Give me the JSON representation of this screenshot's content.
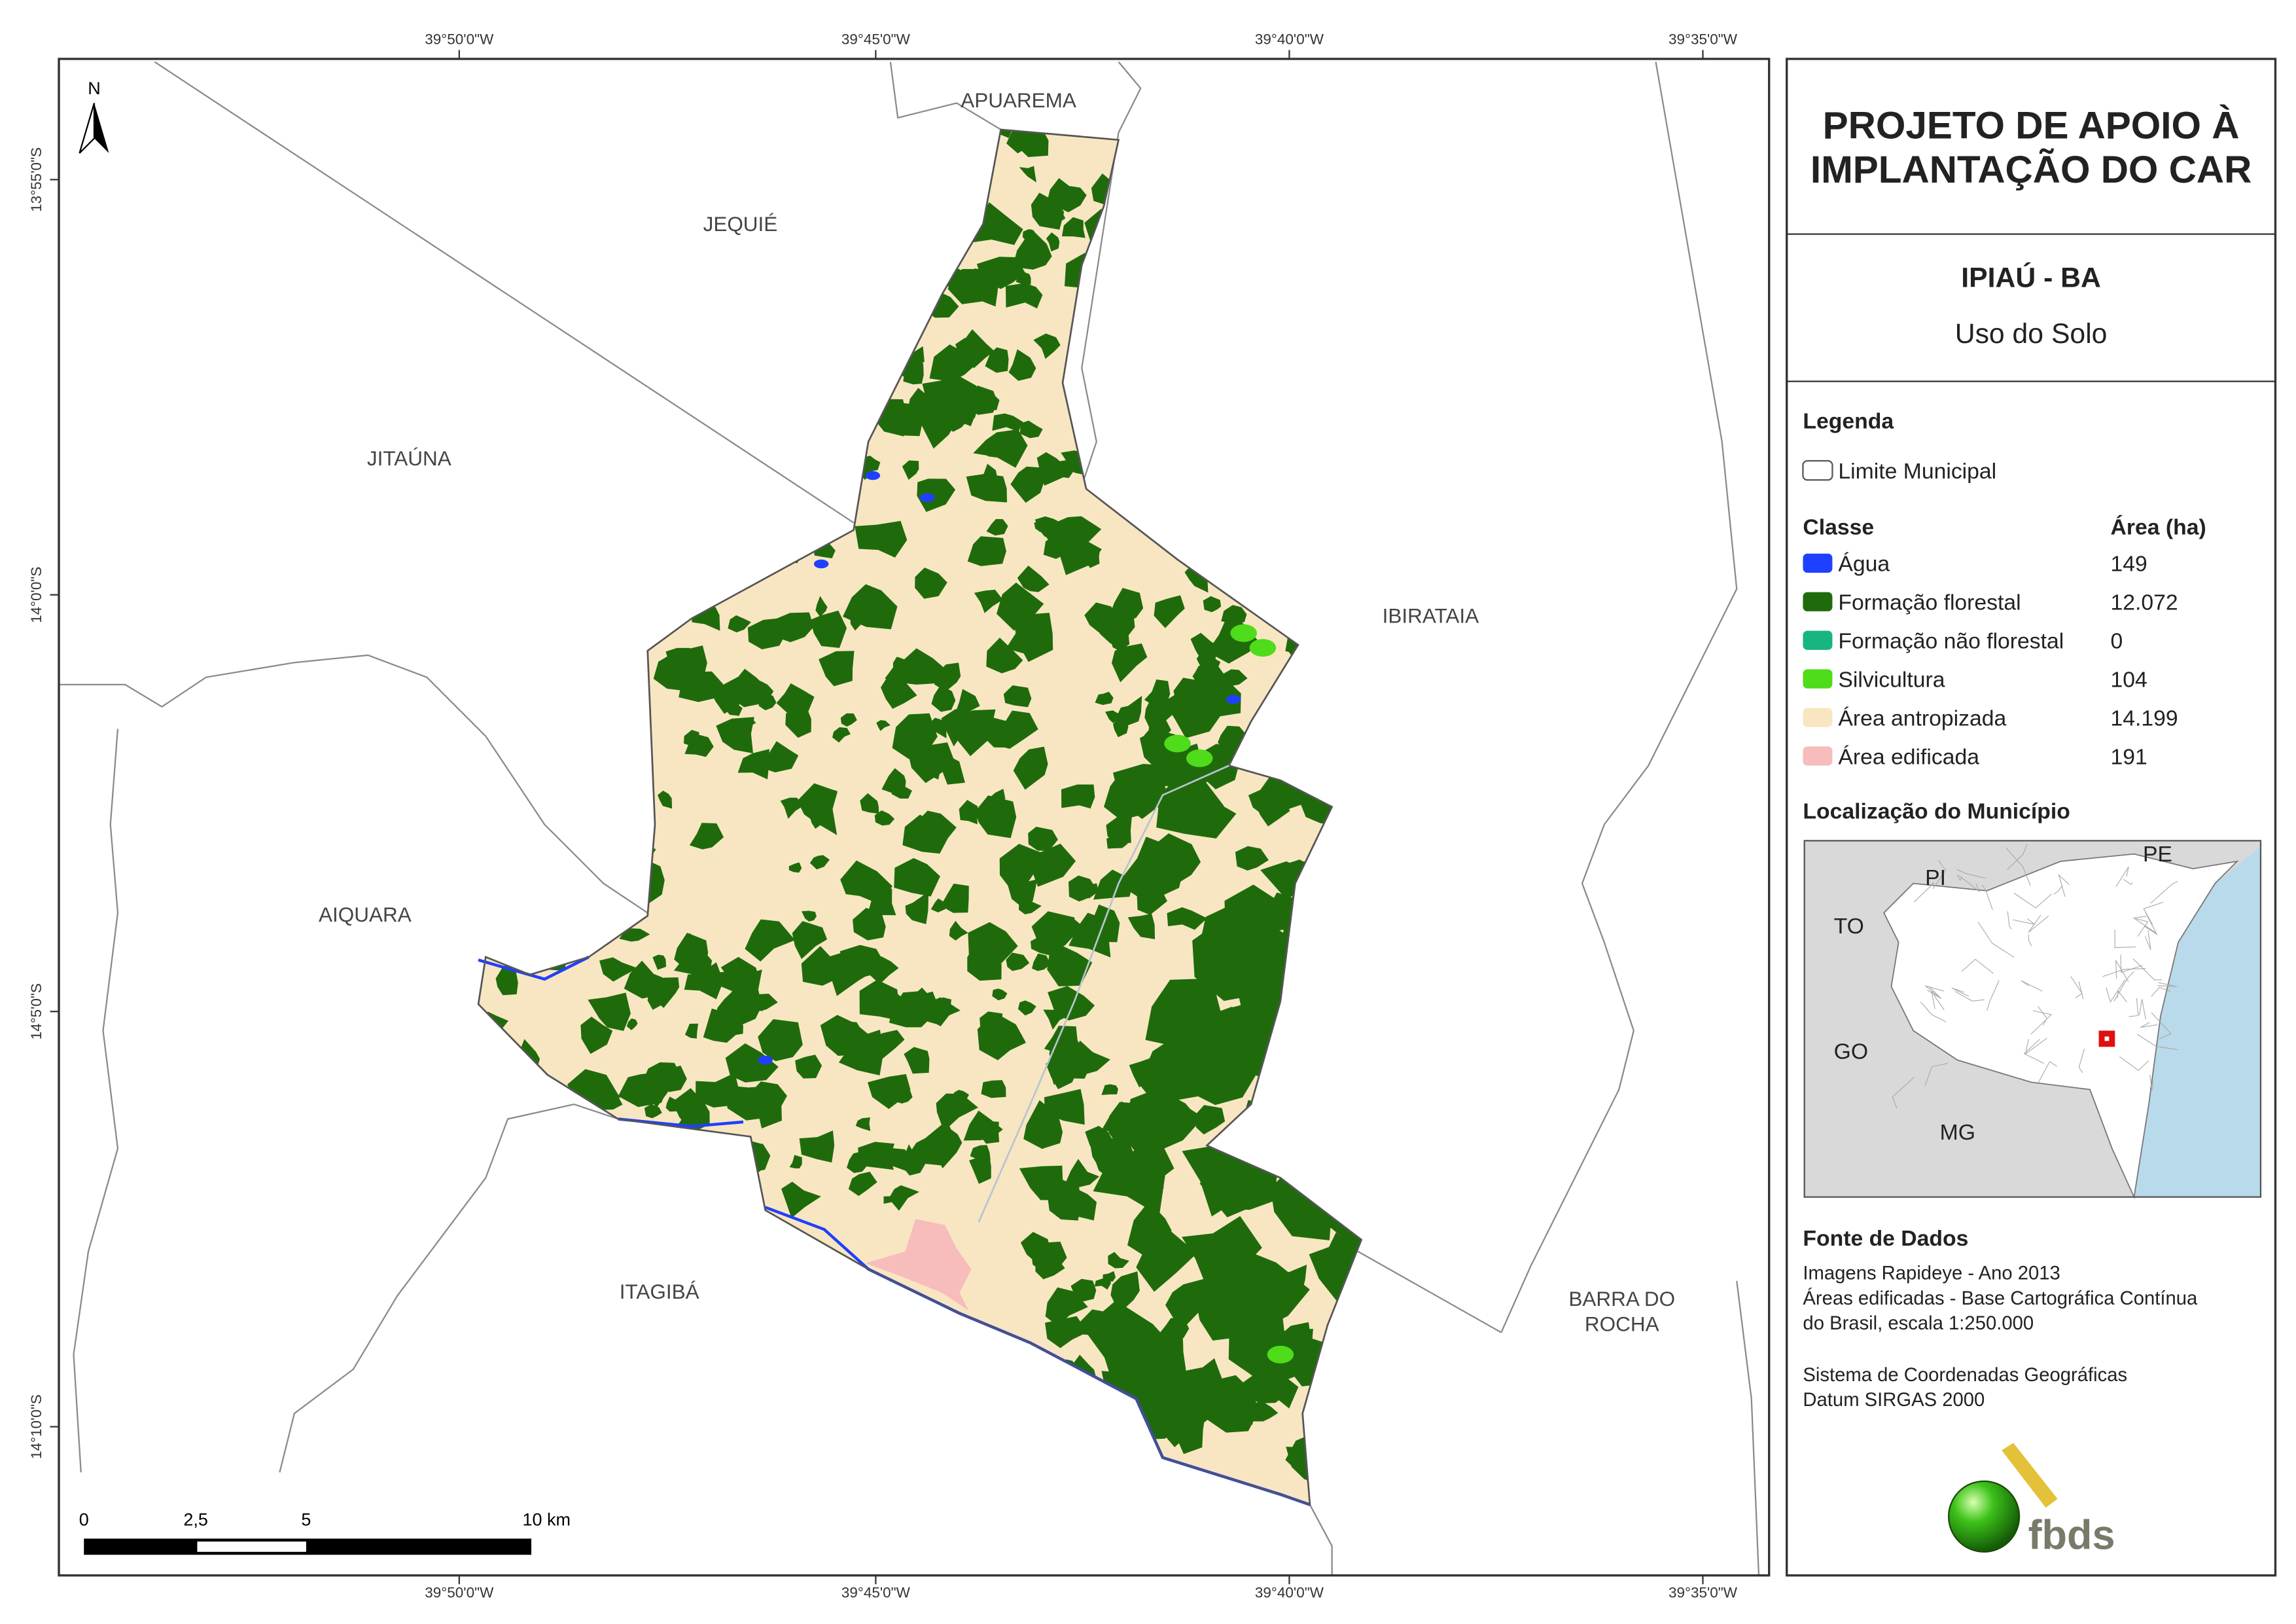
{
  "map": {
    "lon_labels": [
      "39°50'0\"W",
      "39°45'0\"W",
      "39°40'0\"W",
      "39°35'0\"W"
    ],
    "lat_labels": [
      "13°55'0\"S",
      "14°0'0\"S",
      "14°5'0\"S",
      "14°10'0\"S"
    ],
    "neighbors": [
      "APUAREMA",
      "JEQUIÉ",
      "JITAÚNA",
      "IBIRATAIA",
      "AIQUARA",
      "ITAGIBÁ",
      [
        "BARRA DO",
        "ROCHA"
      ]
    ],
    "north": "N",
    "scale_labels": [
      "0",
      "2,5",
      "5",
      "10 km"
    ]
  },
  "panel": {
    "title": [
      "PROJETO DE APOIO À",
      "IMPLANTAÇÃO DO CAR"
    ],
    "municipality": "IPIAÚ - BA",
    "subtitle": "Uso do Solo",
    "legend_title": "Legenda",
    "boundary": "Limite Municipal",
    "class_header": "Classe",
    "area_header": "Área (ha)",
    "classes": [
      {
        "name": "Água",
        "area": "149",
        "color": "#2040ff"
      },
      {
        "name": "Formação florestal",
        "area": "12.072",
        "color": "#1f6b0c"
      },
      {
        "name": "Formação não florestal",
        "area": "0",
        "color": "#18b57f"
      },
      {
        "name": "Silvicultura",
        "area": "104",
        "color": "#4fdc1a"
      },
      {
        "name": "Área antropizada",
        "area": "14.199",
        "color": "#f8e6c2"
      },
      {
        "name": "Área edificada",
        "area": "191",
        "color": "#f7bcbc"
      }
    ],
    "location_title": "Localização do Município",
    "inset_labels": [
      "PI",
      "PE",
      "TO",
      "GO",
      "MG"
    ],
    "source_title": "Fonte de Dados",
    "source_lines": [
      "Imagens Rapideye - Ano 2013",
      "Áreas edificadas - Base Cartográfica Contínua",
      "do Brasil, escala 1:250.000"
    ],
    "crs_lines": [
      "Sistema de Coordenadas Geográficas",
      "Datum SIRGAS 2000"
    ],
    "logo": "fbds"
  }
}
